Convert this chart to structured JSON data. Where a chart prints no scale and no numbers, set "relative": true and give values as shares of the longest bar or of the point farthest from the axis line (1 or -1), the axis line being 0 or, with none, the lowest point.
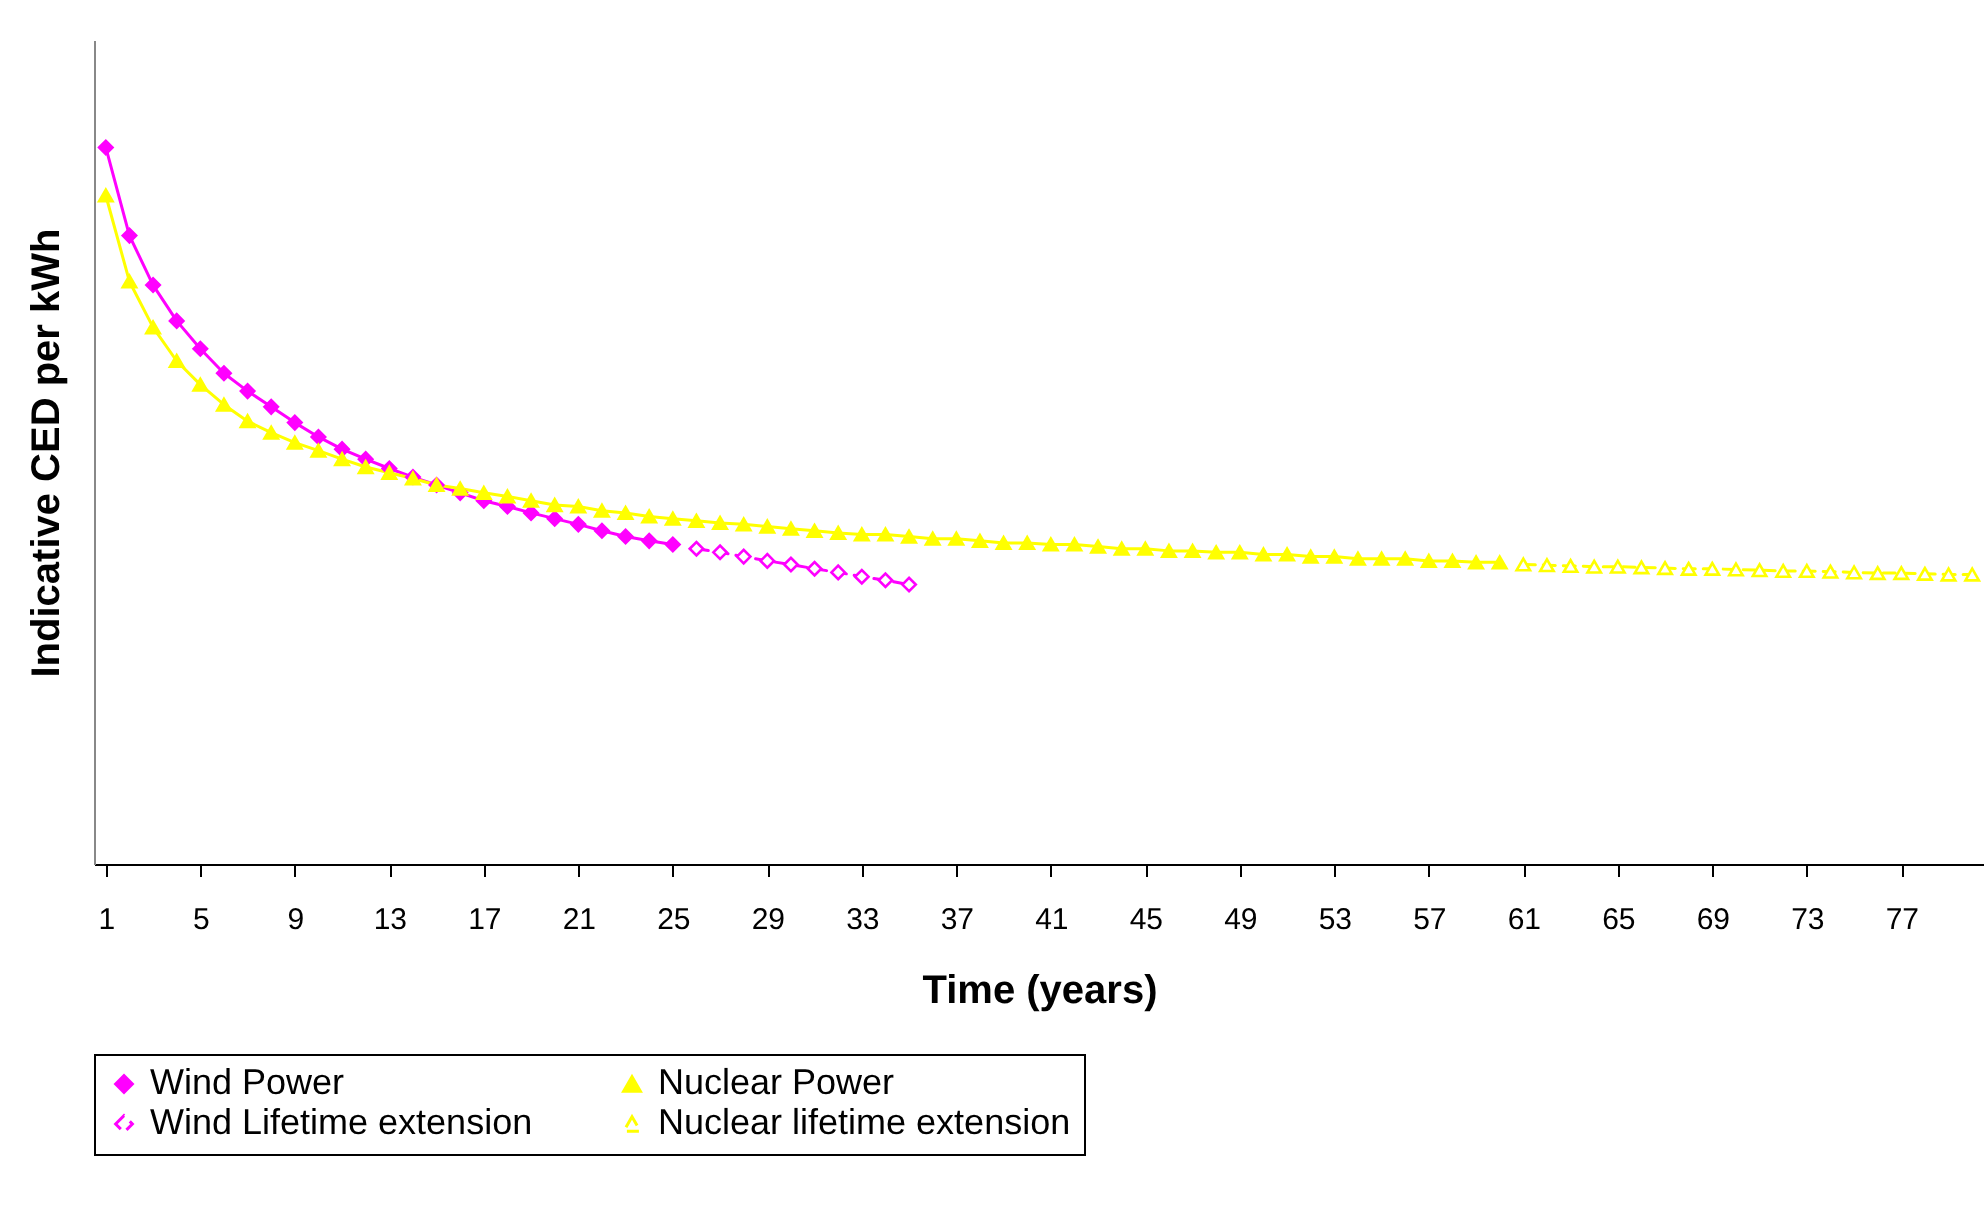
{
  "chart_data": {
    "type": "line",
    "xlabel": "Time (years)",
    "ylabel": "Indicative CED per kWh",
    "relative": true,
    "legend": "bottom",
    "grid": false,
    "categories": [
      "1",
      null,
      null,
      null,
      "5",
      null,
      null,
      null,
      "9",
      null,
      null,
      null,
      "13",
      null,
      null,
      null,
      "17",
      null,
      null,
      null,
      "21",
      null,
      null,
      null,
      "25",
      null,
      null,
      null,
      "29",
      null,
      null,
      null,
      "33",
      null,
      null,
      null,
      "37",
      null,
      null,
      null,
      "41",
      null,
      null,
      null,
      "45",
      null,
      null,
      null,
      "49",
      null,
      null,
      null,
      "53",
      null,
      null,
      null,
      "57",
      null,
      null,
      null,
      "61",
      null,
      null,
      null,
      "65",
      null,
      null,
      null,
      "69",
      null,
      null,
      null,
      "73",
      null,
      null,
      null,
      "77",
      null,
      null,
      null
    ],
    "series": [
      {
        "name": "Wind Power",
        "color": "#ff00ff",
        "marker": "diamond",
        "line_style": "solid",
        "values": [
          1,
          0.877,
          0.808,
          0.758,
          0.719,
          0.685,
          0.66,
          0.638,
          0.616,
          0.596,
          0.579,
          0.565,
          0.552,
          0.54,
          0.529,
          0.518,
          0.507,
          0.499,
          0.49,
          0.482,
          0.474,
          0.465,
          0.457,
          0.451,
          0.446,
          null,
          null,
          null,
          null,
          null,
          null,
          null,
          null,
          null,
          null,
          null,
          null,
          null,
          null,
          null,
          null,
          null,
          null,
          null,
          null,
          null,
          null,
          null,
          null,
          null,
          null,
          null,
          null,
          null,
          null,
          null,
          null,
          null,
          null,
          null,
          null,
          null,
          null,
          null,
          null,
          null,
          null,
          null,
          null,
          null,
          null,
          null,
          null,
          null,
          null,
          null,
          null,
          null,
          null,
          null
        ]
      },
      {
        "name": "Nuclear Power",
        "color": "#ffff00",
        "marker": "triangle",
        "line_style": "solid",
        "values": [
          0.933,
          0.813,
          0.749,
          0.702,
          0.669,
          0.641,
          0.618,
          0.602,
          0.588,
          0.577,
          0.565,
          0.554,
          0.546,
          0.538,
          0.529,
          0.524,
          0.518,
          0.513,
          0.507,
          0.501,
          0.499,
          0.493,
          0.49,
          0.485,
          0.482,
          0.479,
          0.476,
          0.474,
          0.471,
          0.468,
          0.465,
          0.462,
          0.46,
          0.46,
          0.457,
          0.454,
          0.454,
          0.451,
          0.448,
          0.448,
          0.446,
          0.446,
          0.443,
          0.44,
          0.44,
          0.437,
          0.437,
          0.435,
          0.435,
          0.432,
          0.432,
          0.429,
          0.429,
          0.426,
          0.426,
          0.426,
          0.423,
          0.423,
          0.421,
          0.421,
          null,
          null,
          null,
          null,
          null,
          null,
          null,
          null,
          null,
          null,
          null,
          null,
          null,
          null,
          null,
          null,
          null,
          null,
          null,
          null
        ]
      },
      {
        "name": "Wind Lifetime extension",
        "color": "#ff00ff",
        "marker": "diamond",
        "line_style": "dashed",
        "values": [
          null,
          null,
          null,
          null,
          null,
          null,
          null,
          null,
          null,
          null,
          null,
          null,
          null,
          null,
          null,
          null,
          null,
          null,
          null,
          null,
          null,
          null,
          null,
          null,
          null,
          0.44,
          0.435,
          0.429,
          0.423,
          0.418,
          0.412,
          0.407,
          0.401,
          0.396,
          0.39,
          null,
          null,
          null,
          null,
          null,
          null,
          null,
          null,
          null,
          null,
          null,
          null,
          null,
          null,
          null,
          null,
          null,
          null,
          null,
          null,
          null,
          null,
          null,
          null,
          null,
          null,
          null,
          null,
          null,
          null,
          null,
          null,
          null,
          null,
          null,
          null,
          null,
          null,
          null,
          null,
          null,
          null,
          null,
          null,
          null
        ]
      },
      {
        "name": "Nuclear lifetime extension",
        "color": "#ffff00",
        "marker": "triangle",
        "line_style": "dashed",
        "values": [
          null,
          null,
          null,
          null,
          null,
          null,
          null,
          null,
          null,
          null,
          null,
          null,
          null,
          null,
          null,
          null,
          null,
          null,
          null,
          null,
          null,
          null,
          null,
          null,
          null,
          null,
          null,
          null,
          null,
          null,
          null,
          null,
          null,
          null,
          null,
          null,
          null,
          null,
          null,
          null,
          null,
          null,
          null,
          null,
          null,
          null,
          null,
          null,
          null,
          null,
          null,
          null,
          null,
          null,
          null,
          null,
          null,
          null,
          null,
          null,
          0.418,
          0.417,
          0.416,
          0.415,
          0.415,
          0.414,
          0.413,
          0.412,
          0.412,
          0.411,
          0.41,
          0.409,
          0.409,
          0.408,
          0.407,
          0.406,
          0.406,
          0.405,
          0.404,
          0.404
        ]
      }
    ]
  }
}
